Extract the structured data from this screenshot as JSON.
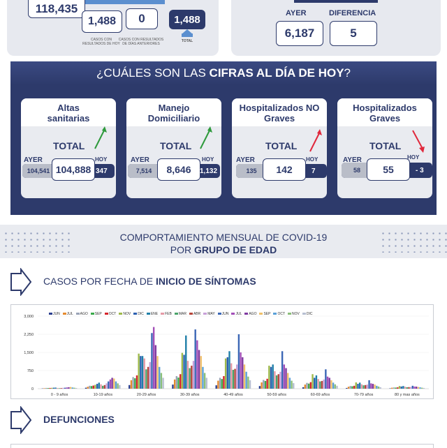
{
  "top_left": {
    "total_value": "118,435",
    "casos_resultados_hoy_value": "1,488",
    "casos_resultados_hoy_caption": "CASOS CON RESULTADOS DE HOY",
    "casos_dias_anteriores_value": "0",
    "casos_dias_anteriores_caption": "CASOS CON RESULTADOS DE DÍAS ANTERIORES",
    "total_hoy_value": "1,488",
    "total_caption": "TOTAL"
  },
  "top_right": {
    "ayer_label": "AYER",
    "ayer_value": "6,187",
    "diferencia_label": "DIFERENCIA",
    "diferencia_value": "5"
  },
  "cifras": {
    "title_prefix": "¿CUÁLES SON LAS ",
    "title_bold": "CIFRAS AL DÍA DE HOY",
    "title_suffix": "?",
    "cards": [
      {
        "title": "Altas sanitarias",
        "total_label": "TOTAL",
        "ayer_label": "AYER",
        "hoy_label": "HOY",
        "ayer_value": "104,541",
        "total_value": "104,888",
        "hoy_value": "347",
        "trend": "up",
        "trend_color": "#2e9a3c"
      },
      {
        "title": "Manejo Domiciliario",
        "total_label": "TOTAL",
        "ayer_label": "AYER",
        "hoy_label": "HOY",
        "ayer_value": "7,514",
        "total_value": "8,646",
        "hoy_value": "1,132",
        "trend": "up",
        "trend_color": "#2e9a3c"
      },
      {
        "title": "Hospitalizados NO Graves",
        "total_label": "TOTAL",
        "ayer_label": "AYER",
        "hoy_label": "HOY",
        "ayer_value": "135",
        "total_value": "142",
        "hoy_value": "7",
        "trend": "up",
        "trend_color": "#e0283c"
      },
      {
        "title": "Hospitalizados Graves",
        "total_label": "TOTAL",
        "ayer_label": "AYER",
        "hoy_label": "HOY",
        "ayer_value": "58",
        "total_value": "55",
        "hoy_value": "- 3",
        "trend": "down",
        "trend_color": "#e0283c"
      }
    ]
  },
  "comportamiento": {
    "line1": "COMPORTAMIENTO MENSUAL DE COVID-19",
    "line2_prefix": "POR ",
    "line2_bold": "GRUPO DE EDAD"
  },
  "casos_section": {
    "title_prefix": "CASOS POR FECHA DE ",
    "title_bold": "INICIO DE SÍNTOMAS"
  },
  "defunciones_section": {
    "title": "DEFUNCIONES"
  },
  "chart_data": {
    "type": "bar",
    "categories": [
      "0 - 9 años",
      "10-19 años",
      "20-29 años",
      "30-39 años",
      "40-49 años",
      "50-59 años",
      "60-69 años",
      "70-79 años",
      "80 y mas años"
    ],
    "ylim": [
      0,
      3000
    ],
    "yticks": [
      "0",
      "750",
      "1,500",
      "2,250",
      "3,000"
    ],
    "ytick_values": [
      0,
      750,
      1500,
      2250,
      3000
    ],
    "legend_position": "top",
    "series": [
      {
        "name": "JUN",
        "color": "#2b3f8f",
        "values": [
          10,
          40,
          150,
          170,
          140,
          110,
          60,
          30,
          15
        ]
      },
      {
        "name": "JUL",
        "color": "#e58a2f",
        "values": [
          20,
          80,
          350,
          380,
          330,
          260,
          170,
          80,
          40
        ]
      },
      {
        "name": "AGO",
        "color": "#9aa3b6",
        "values": [
          30,
          120,
          480,
          520,
          450,
          360,
          240,
          110,
          50
        ]
      },
      {
        "name": "SEP",
        "color": "#3aaa4a",
        "values": [
          25,
          110,
          430,
          460,
          400,
          320,
          210,
          100,
          45
        ]
      },
      {
        "name": "OCT",
        "color": "#d6242a",
        "values": [
          30,
          130,
          550,
          600,
          520,
          410,
          270,
          120,
          55
        ]
      },
      {
        "name": "NOV",
        "color": "#9eb94a",
        "values": [
          35,
          160,
          1450,
          1480,
          1250,
          950,
          600,
          260,
          110
        ]
      },
      {
        "name": "DIC",
        "color": "#2b5fb0",
        "values": [
          40,
          200,
          1350,
          1400,
          1300,
          900,
          450,
          200,
          90
        ]
      },
      {
        "name": "ENE",
        "color": "#1f7fa8",
        "values": [
          45,
          250,
          1350,
          2200,
          1550,
          1000,
          550,
          250,
          110
        ]
      },
      {
        "name": "FEB",
        "color": "#e59aa6",
        "values": [
          30,
          180,
          1250,
          1150,
          1050,
          720,
          400,
          180,
          80
        ]
      },
      {
        "name": "MAR",
        "color": "#4aa36a",
        "values": [
          20,
          120,
          800,
          850,
          780,
          550,
          300,
          140,
          60
        ]
      },
      {
        "name": "ABR",
        "color": "#b5453a",
        "values": [
          25,
          150,
          900,
          950,
          820,
          600,
          320,
          150,
          65
        ]
      },
      {
        "name": "MAY",
        "color": "#c8a0d8",
        "values": [
          35,
          220,
          1100,
          1150,
          1000,
          700,
          380,
          170,
          70
        ]
      },
      {
        "name": "JUN",
        "color": "#3a66b5",
        "values": [
          40,
          300,
          2300,
          2450,
          2250,
          1550,
          800,
          350,
          120
        ]
      },
      {
        "name": "JUL",
        "color": "#a34fb8",
        "values": [
          50,
          380,
          2550,
          2000,
          1500,
          1000,
          500,
          220,
          90
        ]
      },
      {
        "name": "AGO",
        "color": "#7f3aa0",
        "values": [
          60,
          450,
          1800,
          1600,
          1300,
          850,
          450,
          200,
          85
        ]
      },
      {
        "name": "SEP",
        "color": "#f0c06a",
        "values": [
          70,
          420,
          1350,
          1350,
          1000,
          650,
          350,
          170,
          70
        ]
      },
      {
        "name": "OCT",
        "color": "#5aa0d8",
        "values": [
          50,
          300,
          900,
          900,
          700,
          450,
          250,
          120,
          55
        ]
      },
      {
        "name": "NOV",
        "color": "#8bbf7a",
        "values": [
          40,
          220,
          650,
          650,
          500,
          330,
          180,
          90,
          40
        ]
      },
      {
        "name": "DIC",
        "color": "#b7bfd1",
        "values": [
          30,
          150,
          450,
          450,
          350,
          230,
          120,
          60,
          30
        ]
      }
    ]
  }
}
